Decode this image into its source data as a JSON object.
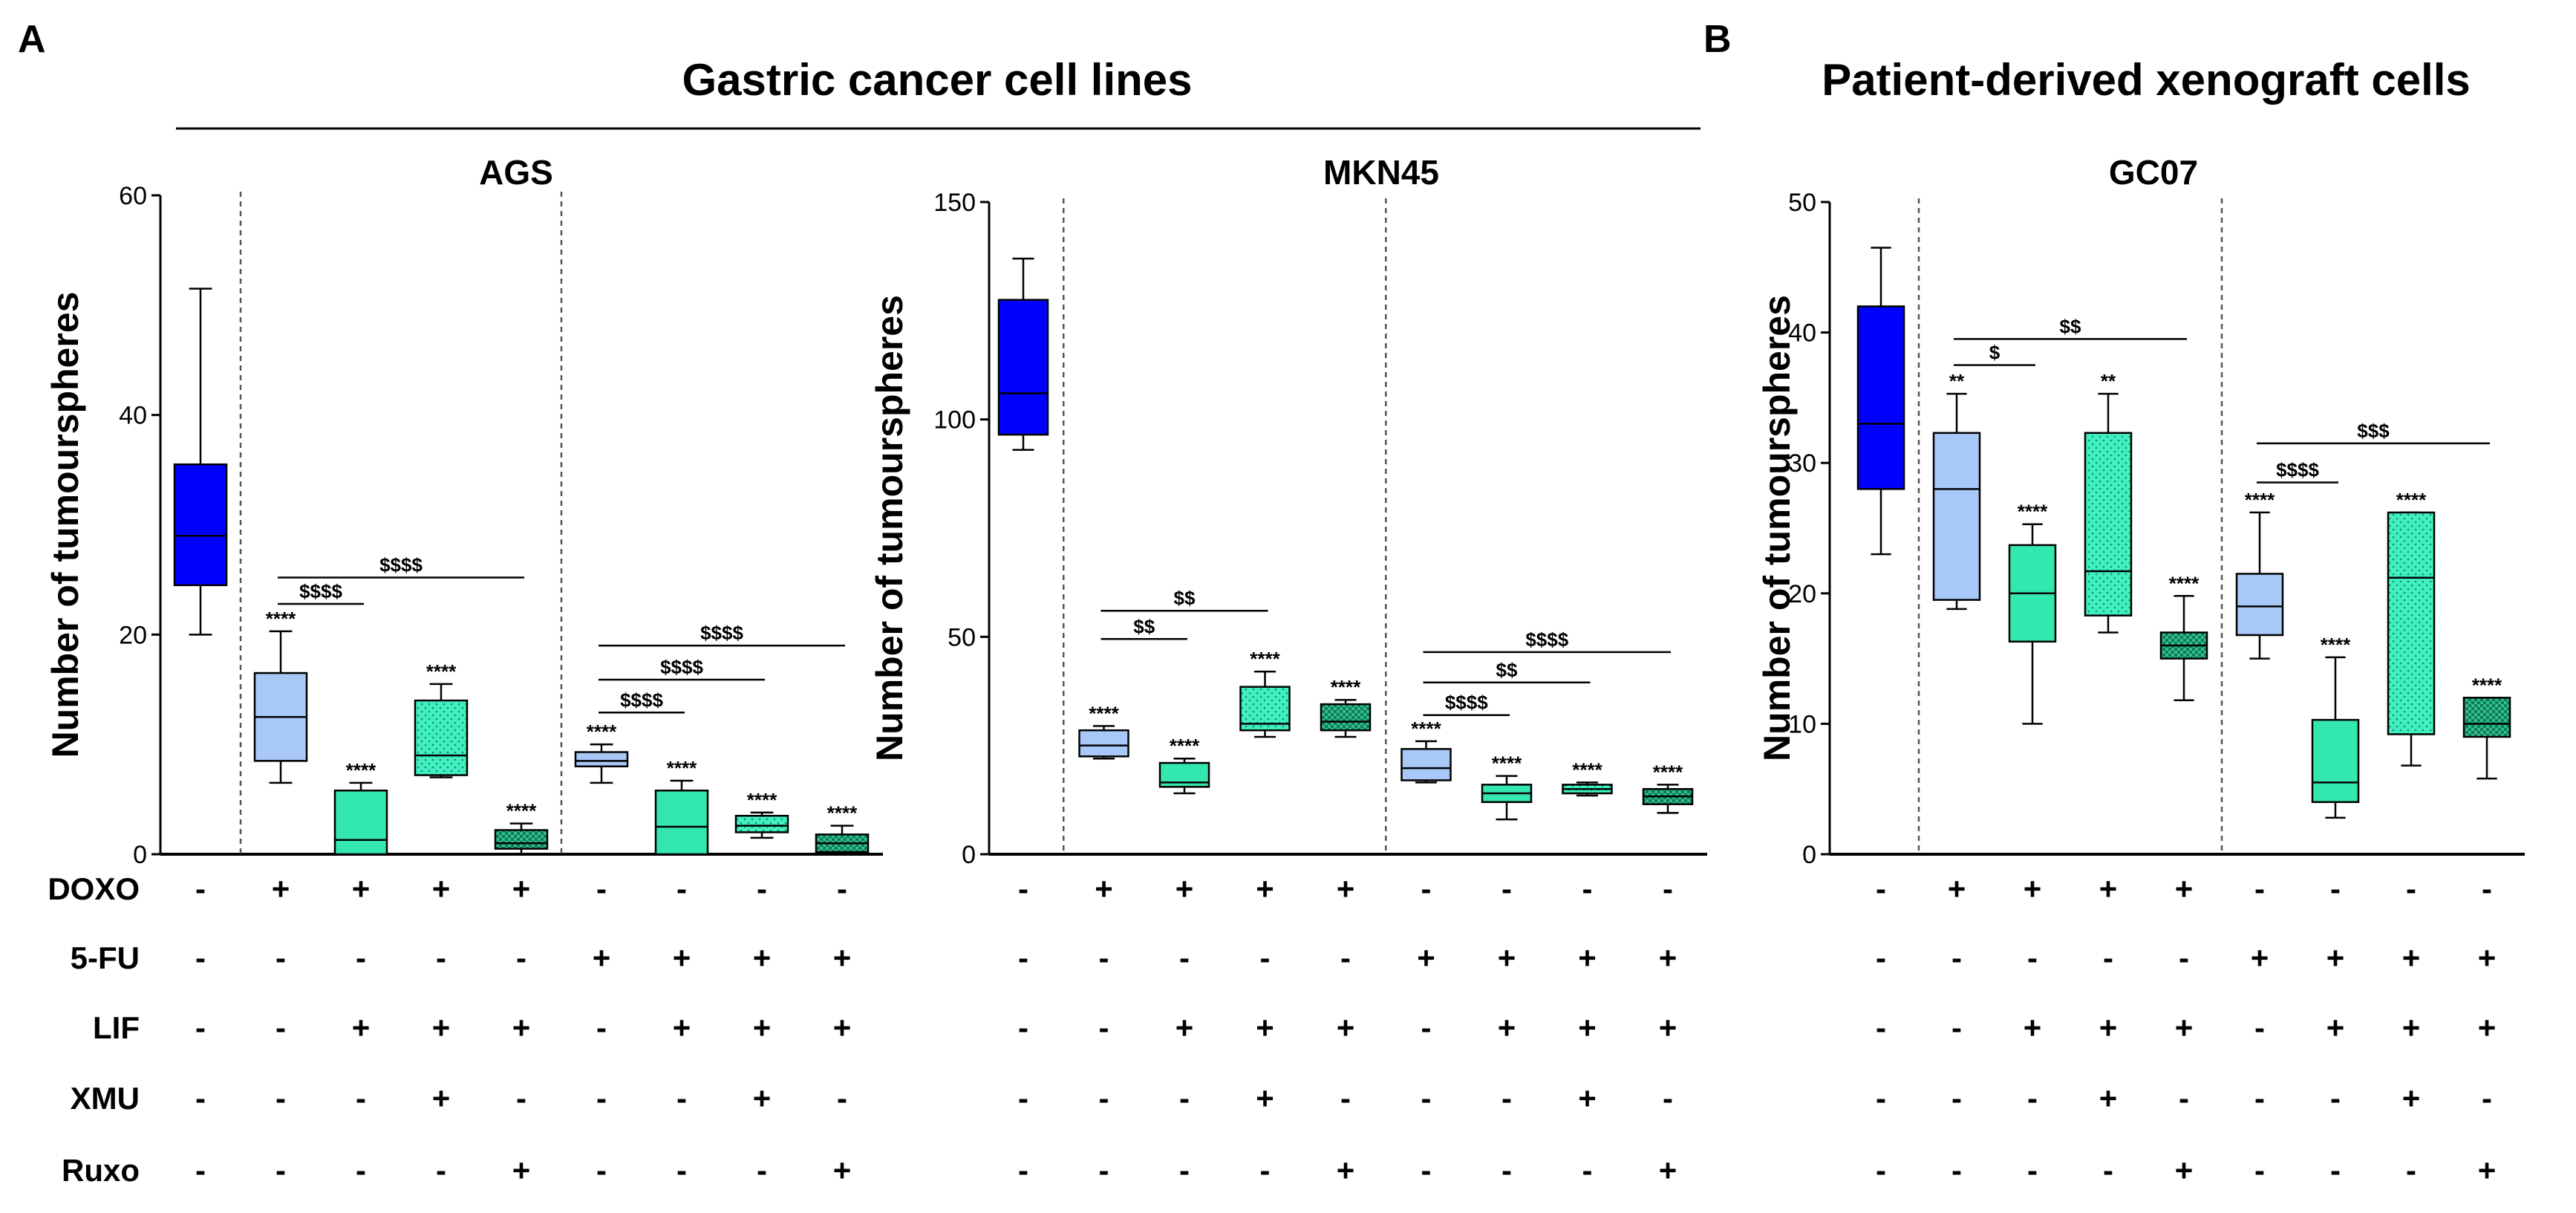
{
  "panels": [
    {
      "letter": "A",
      "title": "Gastric cancer cell lines"
    },
    {
      "letter": "B",
      "title": "Patient-derived xenograft cells"
    }
  ],
  "condition_labels": [
    "DOXO",
    "5-FU",
    "LIF",
    "XMU",
    "Ruxo"
  ],
  "conditions": [
    [
      "-",
      "+",
      "+",
      "+",
      "+",
      "-",
      "-",
      "-",
      "-"
    ],
    [
      "-",
      "-",
      "-",
      "-",
      "-",
      "+",
      "+",
      "+",
      "+"
    ],
    [
      "-",
      "-",
      "+",
      "+",
      "+",
      "-",
      "+",
      "+",
      "+"
    ],
    [
      "-",
      "-",
      "-",
      "+",
      "-",
      "-",
      "-",
      "+",
      "-"
    ],
    [
      "-",
      "-",
      "-",
      "-",
      "+",
      "-",
      "-",
      "-",
      "+"
    ]
  ],
  "colors": {
    "control": "#0000ff",
    "light_blue": "#a8c8f8",
    "green": "#33e8b0",
    "green_dotted": "#40f0c0",
    "green_dark": "#2fbf8f"
  },
  "chart_data": [
    {
      "type": "box",
      "title": "AGS",
      "ylabel": "Number of tumourspheres",
      "ylim": [
        0,
        60
      ],
      "yticks": [
        0,
        20,
        40,
        60
      ],
      "separators_after": [
        1,
        5
      ],
      "boxes": [
        {
          "min": 20,
          "q1": 24.5,
          "median": 29,
          "q3": 35.5,
          "max": 51.5,
          "style": "control",
          "sig": ""
        },
        {
          "min": 6.5,
          "q1": 8.5,
          "median": 12.5,
          "q3": 16.5,
          "max": 20.3,
          "style": "light_blue",
          "sig": "****"
        },
        {
          "min": 0,
          "q1": 0,
          "median": 1.3,
          "q3": 5.8,
          "max": 6.5,
          "style": "green",
          "sig": "****"
        },
        {
          "min": 7,
          "q1": 7.2,
          "median": 9,
          "q3": 14,
          "max": 15.5,
          "style": "green_dotted",
          "sig": "****"
        },
        {
          "min": 0,
          "q1": 0.5,
          "median": 1,
          "q3": 2.2,
          "max": 2.8,
          "style": "green_dark",
          "sig": "****"
        },
        {
          "min": 6.5,
          "q1": 8,
          "median": 8.5,
          "q3": 9.3,
          "max": 10,
          "style": "light_blue",
          "sig": "****"
        },
        {
          "min": 0,
          "q1": 0,
          "median": 2.5,
          "q3": 5.8,
          "max": 6.7,
          "style": "green",
          "sig": "****"
        },
        {
          "min": 1.5,
          "q1": 2,
          "median": 2.6,
          "q3": 3.5,
          "max": 3.8,
          "style": "green_dotted",
          "sig": "****"
        },
        {
          "min": 0,
          "q1": 0.2,
          "median": 1,
          "q3": 1.8,
          "max": 2.6,
          "style": "green_dark",
          "sig": "****"
        }
      ],
      "brackets": [
        {
          "from": 1,
          "to": 2,
          "y": 22.8,
          "label": "$$$$"
        },
        {
          "from": 1,
          "to": 4,
          "y": 25.2,
          "label": "$$$$"
        },
        {
          "from": 5,
          "to": 6,
          "y": 12.9,
          "label": "$$$$"
        },
        {
          "from": 5,
          "to": 7,
          "y": 15.9,
          "label": "$$$$"
        },
        {
          "from": 5,
          "to": 8,
          "y": 19.0,
          "label": "$$$$"
        }
      ]
    },
    {
      "type": "box",
      "title": "MKN45",
      "ylabel": "Number of tumourspheres",
      "ylim": [
        0,
        150
      ],
      "yticks": [
        0,
        50,
        100,
        150
      ],
      "separators_after": [
        1,
        5
      ],
      "boxes": [
        {
          "min": 93,
          "q1": 96.5,
          "median": 106,
          "q3": 127.5,
          "max": 137,
          "style": "control",
          "sig": ""
        },
        {
          "min": 22,
          "q1": 22.5,
          "median": 25,
          "q3": 28.5,
          "max": 29.5,
          "style": "light_blue",
          "sig": "****"
        },
        {
          "min": 14,
          "q1": 15.5,
          "median": 16.5,
          "q3": 21,
          "max": 22,
          "style": "green",
          "sig": "****"
        },
        {
          "min": 27,
          "q1": 28.5,
          "median": 30,
          "q3": 38.5,
          "max": 42,
          "style": "green_dotted",
          "sig": "****"
        },
        {
          "min": 27,
          "q1": 28.5,
          "median": 30.5,
          "q3": 34.5,
          "max": 35.5,
          "style": "green_dark",
          "sig": "****"
        },
        {
          "min": 16.5,
          "q1": 17,
          "median": 19.8,
          "q3": 24.2,
          "max": 26,
          "style": "light_blue",
          "sig": "****"
        },
        {
          "min": 8,
          "q1": 12,
          "median": 14,
          "q3": 16,
          "max": 18,
          "style": "green",
          "sig": "****"
        },
        {
          "min": 13.5,
          "q1": 14,
          "median": 15,
          "q3": 16,
          "max": 16.5,
          "style": "green_dotted",
          "sig": "****"
        },
        {
          "min": 9.5,
          "q1": 11.5,
          "median": 13.3,
          "q3": 15,
          "max": 16,
          "style": "green_dark",
          "sig": "****"
        }
      ],
      "brackets": [
        {
          "from": 1,
          "to": 2,
          "y": 49.5,
          "label": "$$"
        },
        {
          "from": 1,
          "to": 3,
          "y": 56,
          "label": "$$"
        },
        {
          "from": 5,
          "to": 6,
          "y": 32,
          "label": "$$$$"
        },
        {
          "from": 5,
          "to": 7,
          "y": 39.5,
          "label": "$$"
        },
        {
          "from": 5,
          "to": 8,
          "y": 46.5,
          "label": "$$$$"
        }
      ]
    },
    {
      "type": "box",
      "title": "GC07",
      "ylabel": "Number of tumourspheres",
      "ylim": [
        0,
        50
      ],
      "yticks": [
        0,
        10,
        20,
        30,
        40,
        50
      ],
      "separators_after": [
        1,
        5
      ],
      "boxes": [
        {
          "min": 23,
          "q1": 28,
          "median": 33,
          "q3": 42,
          "max": 46.5,
          "style": "control",
          "sig": ""
        },
        {
          "min": 18.8,
          "q1": 19.5,
          "median": 28,
          "q3": 32.3,
          "max": 35.3,
          "style": "light_blue",
          "sig": "**"
        },
        {
          "min": 10,
          "q1": 16.3,
          "median": 20,
          "q3": 23.7,
          "max": 25.3,
          "style": "green",
          "sig": "****"
        },
        {
          "min": 17,
          "q1": 18.3,
          "median": 21.7,
          "q3": 32.3,
          "max": 35.3,
          "style": "green_dotted",
          "sig": "**"
        },
        {
          "min": 11.8,
          "q1": 15,
          "median": 16,
          "q3": 17,
          "max": 19.8,
          "style": "green_dark",
          "sig": "****"
        },
        {
          "min": 15,
          "q1": 16.8,
          "median": 19,
          "q3": 21.5,
          "max": 26.2,
          "style": "light_blue",
          "sig": "****"
        },
        {
          "min": 2.8,
          "q1": 4,
          "median": 5.5,
          "q3": 10.3,
          "max": 15.1,
          "style": "green",
          "sig": "****"
        },
        {
          "min": 6.8,
          "q1": 9.2,
          "median": 21.2,
          "q3": 26.2,
          "max": 26.2,
          "style": "green_dotted",
          "sig": "****"
        },
        {
          "min": 5.8,
          "q1": 9,
          "median": 10,
          "q3": 12,
          "max": 12,
          "style": "green_dark",
          "sig": "****"
        }
      ],
      "brackets": [
        {
          "from": 1,
          "to": 2,
          "y": 37.5,
          "label": "$"
        },
        {
          "from": 1,
          "to": 4,
          "y": 39.5,
          "label": "$$"
        },
        {
          "from": 5,
          "to": 6,
          "y": 28.5,
          "label": "$$$$"
        },
        {
          "from": 5,
          "to": 8,
          "y": 31.5,
          "label": "$$$"
        }
      ]
    }
  ]
}
